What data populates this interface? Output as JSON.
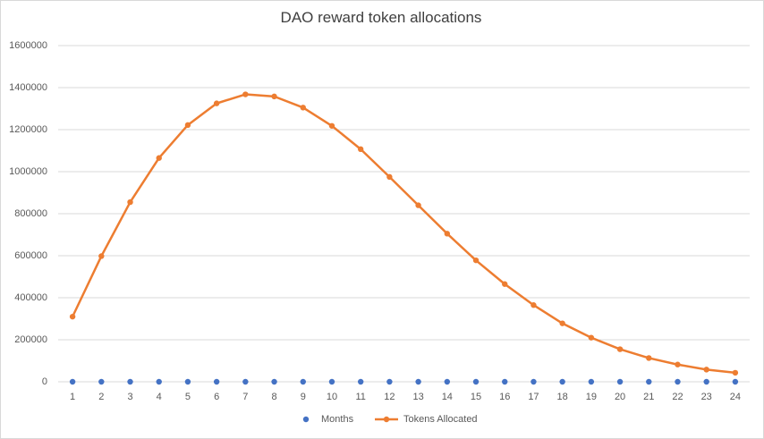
{
  "chart_data": {
    "type": "line",
    "title": "DAO reward token allocations",
    "categories": [
      "1",
      "2",
      "3",
      "4",
      "5",
      "6",
      "7",
      "8",
      "9",
      "10",
      "11",
      "12",
      "13",
      "14",
      "15",
      "16",
      "17",
      "18",
      "19",
      "20",
      "21",
      "22",
      "23",
      "24"
    ],
    "series": [
      {
        "name": "Months",
        "render": "markers",
        "color": "#4472c4",
        "values": [
          1,
          2,
          3,
          4,
          5,
          6,
          7,
          8,
          9,
          10,
          11,
          12,
          13,
          14,
          15,
          16,
          17,
          18,
          19,
          20,
          21,
          22,
          23,
          24
        ]
      },
      {
        "name": "Tokens Allocated",
        "render": "line-markers",
        "color": "#ed7d31",
        "values": [
          310000,
          598000,
          855000,
          1065000,
          1222000,
          1325000,
          1368000,
          1358000,
          1305000,
          1218000,
          1107000,
          975000,
          840000,
          705000,
          578000,
          465000,
          365000,
          278000,
          210000,
          155000,
          113000,
          82000,
          58000,
          43000
        ]
      }
    ],
    "yticks": [
      "0",
      "200000",
      "400000",
      "600000",
      "800000",
      "1000000",
      "1200000",
      "1400000",
      "1600000"
    ],
    "ylim": [
      0,
      1600000
    ],
    "grid": "horizontal",
    "legend": "bottom",
    "gridColor": "#d9d9d9"
  }
}
